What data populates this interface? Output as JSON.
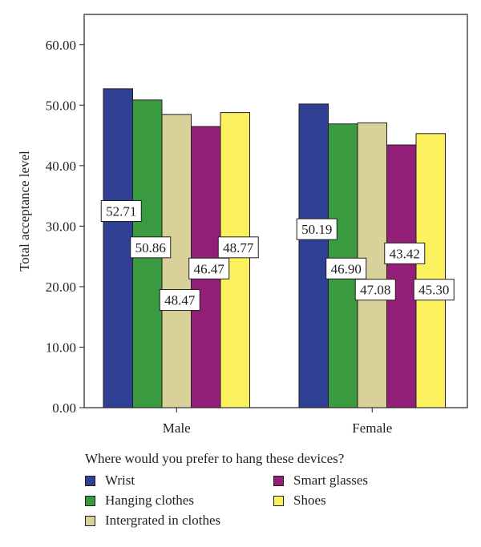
{
  "chart_data": {
    "type": "bar",
    "ylabel": "Total acceptance level",
    "ylim": [
      0,
      65
    ],
    "yticks": [
      "0.00",
      "10.00",
      "20.00",
      "30.00",
      "40.00",
      "50.00",
      "60.00"
    ],
    "categories": [
      "Male",
      "Female"
    ],
    "legend_title": "Where would you prefer to hang these devices?",
    "series": [
      {
        "name": "Wrist",
        "color": "#2e3f94",
        "values": [
          52.71,
          50.19
        ],
        "labels": [
          "52.71",
          "50.19"
        ]
      },
      {
        "name": "Hanging clothes",
        "color": "#3a9a3f",
        "values": [
          50.86,
          46.9
        ],
        "labels": [
          "50.86",
          "46.90"
        ]
      },
      {
        "name": "Intergrated in clothes",
        "color": "#d8d29a",
        "values": [
          48.47,
          47.08
        ],
        "labels": [
          "48.47",
          "47.08"
        ]
      },
      {
        "name": "Smart glasses",
        "color": "#931f78",
        "values": [
          46.47,
          43.42
        ],
        "labels": [
          "46.47",
          "43.42"
        ]
      },
      {
        "name": "Shoes",
        "color": "#fbf15f",
        "values": [
          48.77,
          45.3
        ],
        "labels": [
          "48.77",
          "45.30"
        ]
      }
    ]
  }
}
